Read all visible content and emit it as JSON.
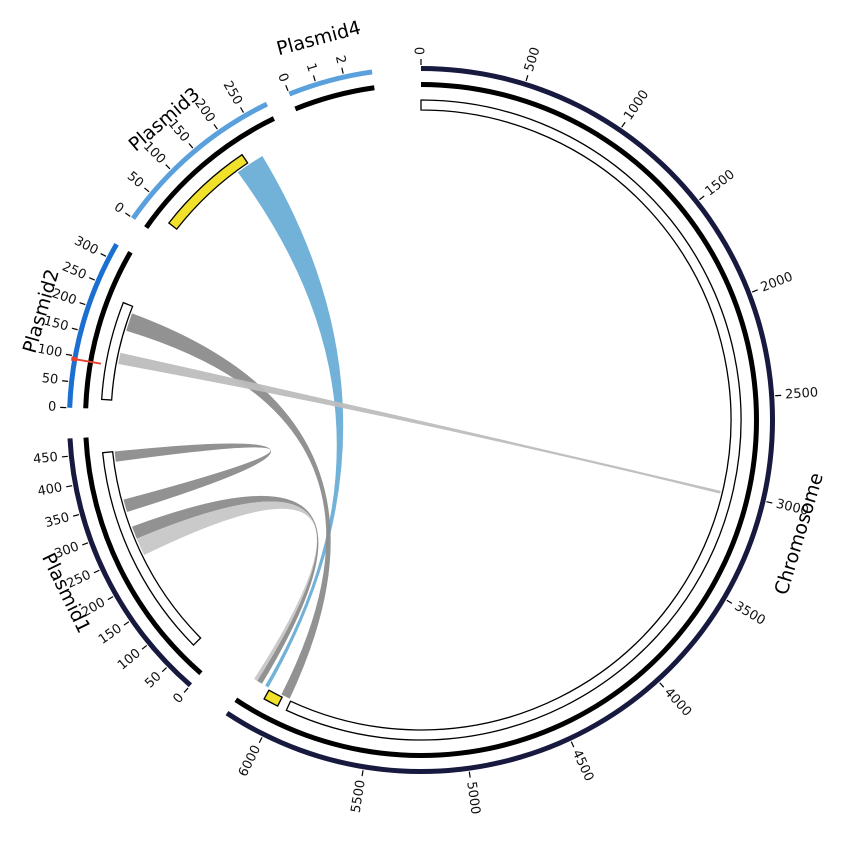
{
  "chart_data": {
    "type": "circos",
    "segments": [
      {
        "name": "Chromosome",
        "length": 6200,
        "color": "#17193f",
        "ticks": [
          0,
          500,
          1000,
          1500,
          2000,
          2500,
          3000,
          3500,
          4000,
          4500,
          5000,
          5500,
          6000
        ]
      },
      {
        "name": "Plasmid1",
        "length": 480,
        "color": "#17193f",
        "ticks": [
          0,
          50,
          100,
          150,
          200,
          250,
          300,
          350,
          400,
          450
        ]
      },
      {
        "name": "Plasmid2",
        "length": 330,
        "color": "#1a6fd1",
        "ticks": [
          0,
          50,
          100,
          150,
          200,
          250,
          300
        ]
      },
      {
        "name": "Plasmid3",
        "length": 290,
        "color": "#5aa0dc",
        "ticks": [
          0,
          50,
          100,
          150,
          200,
          250
        ]
      },
      {
        "name": "Plasmid4",
        "length": 3,
        "color": "#5aa0dc",
        "ticks": [
          0,
          1,
          2
        ]
      }
    ],
    "highlights": [
      {
        "segment": "Plasmid2",
        "start": 90,
        "end": 98,
        "color": "#e8402a"
      }
    ],
    "features": [
      {
        "segment": "Plasmid3",
        "start": 30,
        "end": 210,
        "color": "#f2e12a"
      },
      {
        "segment": "Chromosome",
        "start": 6000,
        "end": 6080,
        "color": "#f2e12a"
      },
      {
        "segment": "Plasmid2",
        "start": 20,
        "end": 230,
        "color": "#ffffff"
      },
      {
        "segment": "Plasmid1",
        "start": 45,
        "end": 450,
        "color": "#ffffff"
      },
      {
        "segment": "Chromosome",
        "start": 0,
        "end": 5950,
        "color": "#ffffff"
      }
    ],
    "links": [
      {
        "a": [
          "Plasmid3",
          185,
          240
        ],
        "b": [
          "Chromosome",
          6090,
          6110
        ],
        "color": "#6baed6"
      },
      {
        "a": [
          "Plasmid2",
          175,
          215
        ],
        "b": [
          "Chromosome",
          5960,
          6010
        ],
        "color": "#8c8c8c"
      },
      {
        "a": [
          "Plasmid2",
          100,
          125
        ],
        "b": [
          "Chromosome",
          3000,
          3015
        ],
        "color": "#bdbdbd"
      },
      {
        "a": [
          "Plasmid1",
          330,
          355
        ],
        "b": [
          "Plasmid1",
          430,
          450
        ],
        "color": "#8c8c8c"
      },
      {
        "a": [
          "Plasmid1",
          275,
          300
        ],
        "b": [
          "Chromosome",
          6130,
          6160
        ],
        "color": "#8c8c8c"
      },
      {
        "a": [
          "Plasmid1",
          240,
          275
        ],
        "b": [
          "Chromosome",
          6160,
          6180
        ],
        "color": "#c7c7c7"
      }
    ]
  }
}
